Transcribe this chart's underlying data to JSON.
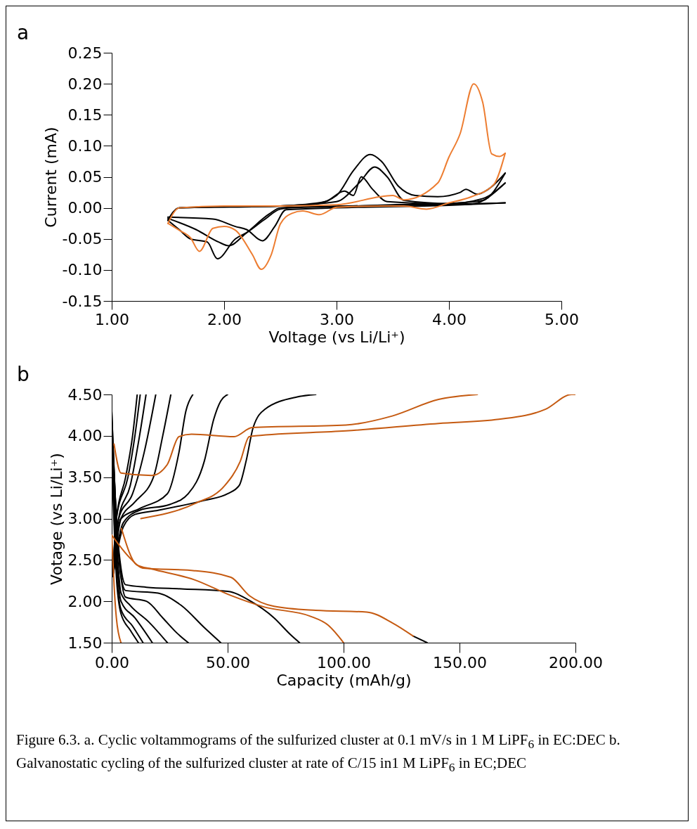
{
  "chart_data": [
    {
      "type": "line",
      "title": "a",
      "xlabel": "Voltage (vs Li/Li⁺)",
      "ylabel": "Current (mA)",
      "xlim": [
        1,
        5
      ],
      "ylim": [
        -0.15,
        0.25
      ],
      "xticks": [
        {
          "value": 1,
          "label": "1.00"
        },
        {
          "value": 2,
          "label": "2.00"
        },
        {
          "value": 3,
          "label": "3.00"
        },
        {
          "value": 4,
          "label": "4.00"
        },
        {
          "value": 5,
          "label": "5.00"
        }
      ],
      "yticks": [
        {
          "value": -0.15,
          "label": "-0.15"
        },
        {
          "value": -0.1,
          "label": "-0.10"
        },
        {
          "value": -0.05,
          "label": "-0.05"
        },
        {
          "value": 0,
          "label": "0.00"
        },
        {
          "value": 0.05,
          "label": "0.05"
        },
        {
          "value": 0.1,
          "label": "0.10"
        },
        {
          "value": 0.15,
          "label": "0.15"
        },
        {
          "value": 0.2,
          "label": "0.20"
        },
        {
          "value": 0.25,
          "label": "0.25"
        }
      ],
      "series": [
        {
          "color": "#000000",
          "x": [
            1.5,
            1.6,
            2.0,
            2.5,
            2.8,
            3.0,
            3.15,
            3.3,
            3.4,
            3.55,
            3.7,
            3.9,
            4.1,
            4.15,
            4.25,
            4.35,
            4.5
          ],
          "values": [
            -0.02,
            0.0,
            0.002,
            0.003,
            0.006,
            0.02,
            0.06,
            0.086,
            0.075,
            0.035,
            0.02,
            0.018,
            0.025,
            0.03,
            0.022,
            0.03,
            0.056
          ]
        },
        {
          "color": "#000000",
          "x": [
            1.5,
            1.6,
            1.7,
            1.85,
            1.94,
            2.1,
            2.2,
            2.35,
            2.5,
            2.6,
            3.0,
            3.5,
            4.0,
            4.3,
            4.5
          ],
          "values": [
            -0.02,
            -0.035,
            -0.05,
            -0.055,
            -0.082,
            -0.05,
            -0.04,
            -0.02,
            -0.002,
            0.0,
            0.002,
            0.005,
            0.007,
            0.012,
            0.056
          ]
        },
        {
          "color": "#000000",
          "x": [
            1.5,
            1.6,
            2.5,
            3.0,
            3.2,
            3.34,
            3.45,
            3.6,
            4.0,
            4.3,
            4.5
          ],
          "values": [
            -0.02,
            0.0,
            0.003,
            0.01,
            0.04,
            0.066,
            0.05,
            0.012,
            0.007,
            0.015,
            0.04
          ]
        },
        {
          "color": "#000000",
          "x": [
            1.5,
            1.75,
            1.95,
            2.04,
            2.2,
            2.4,
            2.5,
            3.5,
            4.2,
            4.5
          ],
          "values": [
            -0.017,
            -0.035,
            -0.055,
            -0.061,
            -0.04,
            -0.01,
            0.0,
            0.004,
            0.006,
            0.04
          ]
        },
        {
          "color": "#000000",
          "x": [
            1.5,
            1.6,
            2.5,
            2.9,
            3.07,
            3.15,
            3.22,
            3.32,
            3.45,
            4.0,
            4.5
          ],
          "values": [
            -0.02,
            0.0,
            0.003,
            0.01,
            0.027,
            0.02,
            0.05,
            0.03,
            0.01,
            0.006,
            0.008
          ]
        },
        {
          "color": "#000000",
          "x": [
            1.5,
            1.9,
            2.1,
            2.2,
            2.34,
            2.45,
            2.55,
            3.0,
            4.0,
            4.5
          ],
          "values": [
            -0.015,
            -0.018,
            -0.03,
            -0.035,
            -0.053,
            -0.03,
            -0.003,
            0.0,
            0.004,
            0.008
          ]
        },
        {
          "color": "#ed7d31",
          "x": [
            1.5,
            1.6,
            2.0,
            2.5,
            3.0,
            3.5,
            3.6,
            3.9,
            4.0,
            4.1,
            4.22,
            4.3,
            4.38,
            4.45,
            4.5
          ],
          "values": [
            -0.025,
            0.0,
            0.003,
            0.003,
            0.005,
            0.02,
            0.013,
            0.04,
            0.082,
            0.12,
            0.2,
            0.17,
            0.087,
            0.083,
            0.088
          ]
        },
        {
          "color": "#ed7d31",
          "x": [
            1.5,
            1.6,
            1.7,
            1.78,
            1.9,
            2.0,
            2.1,
            2.25,
            2.33,
            2.42,
            2.5,
            2.6,
            2.7,
            2.85,
            3.0,
            3.4,
            3.6,
            3.8,
            4.0,
            4.2,
            4.4,
            4.5
          ],
          "values": [
            -0.025,
            -0.036,
            -0.048,
            -0.07,
            -0.033,
            -0.03,
            -0.036,
            -0.075,
            -0.099,
            -0.075,
            -0.026,
            -0.009,
            -0.005,
            -0.011,
            0.001,
            0.003,
            0.003,
            -0.002,
            0.008,
            0.018,
            0.038,
            0.088
          ]
        }
      ]
    },
    {
      "type": "line",
      "title": "b",
      "xlabel": "Capacity (mAh/g)",
      "ylabel": "Votage (vs Li/Li⁺)",
      "xlim": [
        0,
        200
      ],
      "ylim": [
        1.5,
        4.5
      ],
      "xticks": [
        {
          "value": 0,
          "label": "0.00"
        },
        {
          "value": 50,
          "label": "50.00"
        },
        {
          "value": 100,
          "label": "100.00"
        },
        {
          "value": 150,
          "label": "150.00"
        },
        {
          "value": 200,
          "label": "200.00"
        }
      ],
      "yticks": [
        {
          "value": 1.5,
          "label": "1.50"
        },
        {
          "value": 2,
          "label": "2.00"
        },
        {
          "value": 2.5,
          "label": "2.50"
        },
        {
          "value": 3,
          "label": "3.00"
        },
        {
          "value": 3.5,
          "label": "3.50"
        },
        {
          "value": 4,
          "label": "4.00"
        },
        {
          "value": 4.5,
          "label": "4.50"
        }
      ],
      "annotations": [
        "Figure 6.3. a. Cyclic voltammograms of the sulfurized cluster at 0.1 mV/s in 1 M LiPF$_{6}$ in EC:DEC b. Galvanostatic cycling of the sulfurized cluster at rate of C/15 in1 M LiPF$_{6}$ in EC;DEC"
      ],
      "series": [
        {
          "color": "#000000",
          "x": [
            0.5,
            5,
            10,
            20,
            40,
            50,
            55,
            58,
            61,
            66,
            80,
            88
          ],
          "values": [
            2.3,
            2.9,
            3.05,
            3.1,
            3.22,
            3.3,
            3.4,
            3.7,
            4.1,
            4.32,
            4.47,
            4.5
          ]
        },
        {
          "color": "#000000",
          "x": [
            0.5,
            5,
            12,
            25,
            33,
            40,
            44,
            47,
            50
          ],
          "values": [
            2.3,
            2.95,
            3.1,
            3.17,
            3.3,
            3.7,
            4.2,
            4.42,
            4.5
          ]
        },
        {
          "color": "#000000",
          "x": [
            0.5,
            4,
            12,
            24,
            29,
            32,
            35
          ],
          "values": [
            2.3,
            3.0,
            3.12,
            3.3,
            3.8,
            4.3,
            4.5
          ]
        },
        {
          "color": "#000000",
          "x": [
            0.5,
            4,
            10,
            18,
            22,
            25.5
          ],
          "values": [
            2.3,
            3.0,
            3.2,
            3.5,
            4.0,
            4.5
          ]
        },
        {
          "color": "#000000",
          "x": [
            0.5,
            3,
            9,
            14,
            19
          ],
          "values": [
            2.3,
            3.0,
            3.3,
            3.8,
            4.5
          ]
        },
        {
          "color": "#000000",
          "x": [
            0.5,
            3,
            8,
            12,
            14.8
          ],
          "values": [
            2.3,
            3.0,
            3.4,
            4.0,
            4.5
          ]
        },
        {
          "color": "#000000",
          "x": [
            0.5,
            2,
            7,
            10,
            12.3
          ],
          "values": [
            2.3,
            3.0,
            3.5,
            4.0,
            4.5
          ]
        },
        {
          "color": "#000000",
          "x": [
            0.5,
            2,
            6,
            9,
            11
          ],
          "values": [
            2.3,
            3.0,
            3.5,
            4.0,
            4.5
          ]
        },
        {
          "color": "#000000",
          "x": [
            0,
            2,
            4,
            6,
            15,
            30,
            50,
            60,
            70,
            77,
            81
          ],
          "values": [
            4.3,
            3.0,
            2.4,
            2.2,
            2.17,
            2.15,
            2.12,
            2.0,
            1.8,
            1.6,
            1.5
          ]
        },
        {
          "color": "#000000",
          "x": [
            0,
            2,
            4,
            6,
            20,
            30,
            40,
            47
          ],
          "values": [
            4.3,
            3.0,
            2.3,
            2.13,
            2.1,
            1.95,
            1.68,
            1.5
          ]
        },
        {
          "color": "#000000",
          "x": [
            0,
            2,
            4,
            6,
            15,
            22,
            28,
            33
          ],
          "values": [
            4.2,
            3.0,
            2.3,
            2.05,
            2.0,
            1.8,
            1.62,
            1.5
          ]
        },
        {
          "color": "#000000",
          "x": [
            0,
            2,
            4,
            8,
            16,
            24
          ],
          "values": [
            4.1,
            2.8,
            2.1,
            1.95,
            1.75,
            1.5
          ]
        },
        {
          "color": "#000000",
          "x": [
            0,
            2,
            4,
            10,
            17.5
          ],
          "values": [
            4.0,
            2.6,
            2.0,
            1.8,
            1.5
          ]
        },
        {
          "color": "#000000",
          "x": [
            0,
            2,
            4,
            9,
            13.5
          ],
          "values": [
            3.9,
            2.4,
            1.9,
            1.7,
            1.5
          ]
        },
        {
          "color": "#000000",
          "x": [
            0,
            2,
            4,
            8,
            11.5
          ],
          "values": [
            3.8,
            2.3,
            1.85,
            1.65,
            1.5
          ]
        },
        {
          "color": "#000000",
          "x": [
            130,
            136
          ],
          "values": [
            1.58,
            1.5
          ]
        },
        {
          "color": "#c55a11",
          "x": [
            1,
            4,
            17.3,
            23.9,
            29,
            34.4,
            52.8,
            60.6,
            101,
            121,
            141,
            157.7
          ],
          "values": [
            3.9,
            3.55,
            3.52,
            3.65,
            3.99,
            4.02,
            3.99,
            4.1,
            4.13,
            4.24,
            4.44,
            4.5
          ]
        },
        {
          "color": "#c55a11",
          "x": [
            12.6,
            35.7,
            48.8,
            55.4,
            59.3,
            62,
            101,
            141,
            167,
            187,
            198.4,
            200
          ],
          "values": [
            3.0,
            3.18,
            3.4,
            3.69,
            3.99,
            4.0,
            4.06,
            4.15,
            4.2,
            4.32,
            4.5,
            4.5
          ]
        },
        {
          "color": "#c55a11",
          "x": [
            0,
            8,
            13.4,
            35.7,
            51.4,
            59.3,
            70,
            88,
            110,
            121,
            130
          ],
          "values": [
            2.8,
            2.52,
            2.4,
            2.37,
            2.29,
            2.07,
            1.94,
            1.89,
            1.87,
            1.74,
            1.58
          ]
        },
        {
          "color": "#c55a11",
          "x": [
            4.2,
            10.8,
            17.3,
            35.7,
            51.4,
            65.9,
            85.6,
            93.4,
            100
          ],
          "values": [
            2.88,
            2.44,
            2.39,
            2.26,
            2.07,
            1.93,
            1.82,
            1.71,
            1.5
          ]
        },
        {
          "color": "#c55a11",
          "x": [
            0,
            1,
            2,
            4
          ],
          "values": [
            2.8,
            2.2,
            1.8,
            1.5
          ]
        }
      ]
    }
  ]
}
